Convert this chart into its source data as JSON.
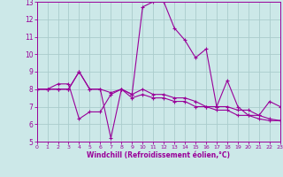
{
  "xlabel": "Windchill (Refroidissement éolien,°C)",
  "x_values": [
    0,
    1,
    2,
    3,
    4,
    5,
    6,
    7,
    8,
    9,
    10,
    11,
    12,
    13,
    14,
    15,
    16,
    17,
    18,
    19,
    20,
    21,
    22,
    23
  ],
  "line1_y": [
    8.0,
    8.0,
    8.3,
    8.3,
    6.3,
    6.7,
    6.7,
    7.7,
    8.0,
    7.7,
    12.7,
    13.0,
    13.0,
    11.5,
    10.8,
    9.8,
    10.3,
    7.0,
    8.5,
    7.0,
    6.5,
    6.5,
    7.3,
    7.0
  ],
  "line2_y": [
    8.0,
    8.0,
    8.0,
    8.0,
    9.0,
    8.0,
    8.0,
    7.8,
    8.0,
    7.7,
    8.0,
    7.7,
    7.7,
    7.5,
    7.5,
    7.3,
    7.0,
    7.0,
    7.0,
    6.8,
    6.8,
    6.5,
    6.3,
    6.2
  ],
  "line3_y": [
    8.0,
    8.0,
    8.0,
    8.0,
    9.0,
    8.0,
    8.0,
    5.2,
    8.0,
    7.5,
    7.7,
    7.5,
    7.5,
    7.3,
    7.3,
    7.0,
    7.0,
    6.8,
    6.8,
    6.5,
    6.5,
    6.3,
    6.2,
    6.2
  ],
  "line_color": "#990099",
  "bg_color": "#cce8e8",
  "grid_color": "#aacccc",
  "axis_color": "#990099",
  "tick_color": "#990099",
  "ylim": [
    5,
    13
  ],
  "xlim": [
    0,
    23
  ]
}
